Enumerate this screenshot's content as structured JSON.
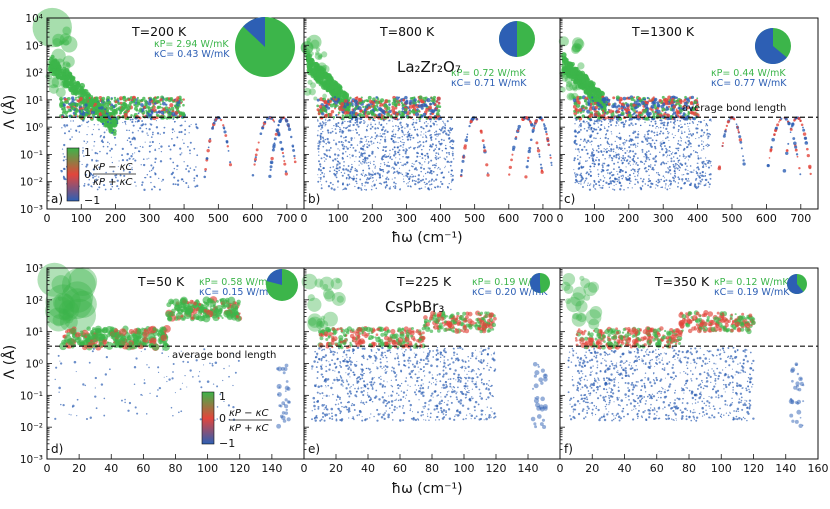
{
  "colors": {
    "green": "#3cb54a",
    "red": "#e2463c",
    "blue": "#2d5fb4",
    "dash": "#111111"
  },
  "figure": {
    "top_xlabel": "ħω (cm⁻¹)",
    "bottom_xlabel": "ħω (cm⁻¹)",
    "ylabel": "Λ (Å)",
    "bond_label": "average bond length",
    "colorbar": {
      "top": "1",
      "mid": "0",
      "bottom": "−1",
      "expr_num": "κP − κC",
      "expr_den": "κP + κC"
    },
    "material_top": "La₂Zr₂O₇",
    "material_bottom": "CsPbBr₃"
  },
  "chart_data": [
    {
      "type": "scatter",
      "panel": "a)",
      "temperature": "T=200 K",
      "kappa_p": "κP= 2.94 W/mK",
      "kappa_c": "κC= 0.43 W/mK",
      "green_fraction": 0.87,
      "xlim": [
        0,
        750
      ],
      "ylim": [
        0.001,
        10000
      ],
      "yscale": "log",
      "xticks": [
        0,
        100,
        200,
        300,
        400,
        500,
        600,
        700
      ],
      "yticks": [
        "10⁻³",
        "10⁻²",
        "10⁻¹",
        "10⁰",
        "10¹",
        "10²",
        "10³",
        "10⁴"
      ],
      "bond_length": 2.3
    },
    {
      "type": "scatter",
      "panel": "b)",
      "temperature": "T=800 K",
      "kappa_p": "κP= 0.72 W/mK",
      "kappa_c": "κC= 0.71 W/mK",
      "green_fraction": 0.5,
      "xlim": [
        0,
        750
      ],
      "ylim": [
        0.001,
        10000
      ],
      "yscale": "log",
      "xticks": [
        0,
        100,
        200,
        300,
        400,
        500,
        600,
        700
      ],
      "bond_length": 2.3
    },
    {
      "type": "scatter",
      "panel": "c)",
      "temperature": "T=1300 K",
      "kappa_p": "κP= 0.44 W/mK",
      "kappa_c": "κC= 0.77 W/mK",
      "green_fraction": 0.36,
      "xlim": [
        0,
        750
      ],
      "ylim": [
        0.001,
        10000
      ],
      "yscale": "log",
      "xticks": [
        0,
        100,
        200,
        300,
        400,
        500,
        600,
        700
      ],
      "bond_length": 2.3
    },
    {
      "type": "scatter",
      "panel": "d)",
      "temperature": "T=50 K",
      "kappa_p": "κP= 0.58 W/mK",
      "kappa_c": "κC= 0.15 W/mK",
      "green_fraction": 0.79,
      "xlim": [
        0,
        160
      ],
      "ylim": [
        0.001,
        1000
      ],
      "yscale": "log",
      "xticks": [
        0,
        20,
        40,
        60,
        80,
        100,
        120,
        140
      ],
      "yticks": [
        "10⁻³",
        "10⁻²",
        "10⁻¹",
        "10⁰",
        "10¹",
        "10²",
        "10³"
      ],
      "bond_length": 3.5
    },
    {
      "type": "scatter",
      "panel": "e)",
      "temperature": "T=225 K",
      "kappa_p": "κP= 0.19 W/mK",
      "kappa_c": "κC= 0.20 W/mK",
      "green_fraction": 0.49,
      "xlim": [
        0,
        160
      ],
      "ylim": [
        0.001,
        1000
      ],
      "yscale": "log",
      "xticks": [
        0,
        20,
        40,
        60,
        80,
        100,
        120,
        140
      ],
      "bond_length": 3.5
    },
    {
      "type": "scatter",
      "panel": "f)",
      "temperature": "T=350 K",
      "kappa_p": "κP= 0.12 W/mK",
      "kappa_c": "κC= 0.19 W/mK",
      "green_fraction": 0.39,
      "xlim": [
        0,
        160
      ],
      "ylim": [
        0.001,
        1000
      ],
      "yscale": "log",
      "xticks": [
        0,
        20,
        40,
        60,
        80,
        100,
        120,
        140,
        160
      ],
      "bond_length": 3.5
    }
  ]
}
